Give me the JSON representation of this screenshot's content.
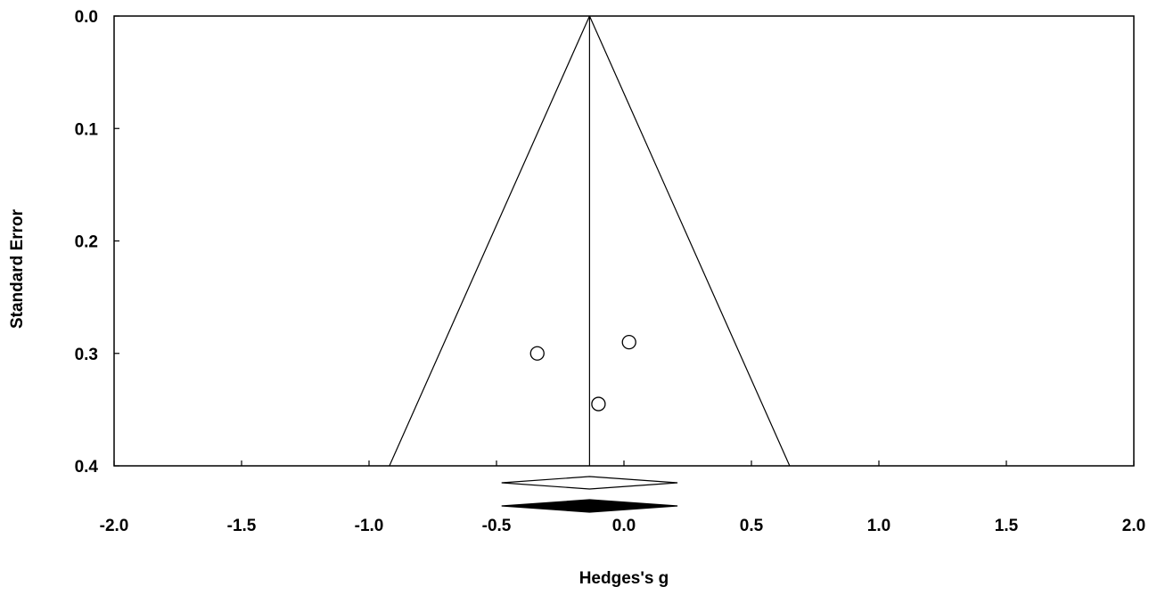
{
  "chart_data": {
    "type": "scatter",
    "title": "",
    "xlabel": "Hedges's g",
    "ylabel": "Standard Error",
    "xlim": [
      -2.0,
      2.0
    ],
    "ylim": [
      0.0,
      0.4
    ],
    "y_inverted": true,
    "grid": false,
    "legend": "none",
    "x_ticks": [
      -2.0,
      -1.5,
      -1.0,
      -0.5,
      0.0,
      0.5,
      1.0,
      1.5,
      2.0
    ],
    "x_tick_labels": [
      "-2.0",
      "-1.5",
      "-1.0",
      "-0.5",
      "0.0",
      "0.5",
      "1.0",
      "1.5",
      "2.0"
    ],
    "y_ticks": [
      0.0,
      0.1,
      0.2,
      0.3,
      0.4
    ],
    "y_tick_labels": [
      "0.0",
      "0.1",
      "0.2",
      "0.3",
      "0.4"
    ],
    "points": [
      {
        "x": -0.34,
        "y": 0.3
      },
      {
        "x": 0.02,
        "y": 0.29
      },
      {
        "x": -0.1,
        "y": 0.345
      }
    ],
    "pooled_effect": -0.135,
    "funnel": {
      "apex": {
        "x": -0.135,
        "y": 0.0
      },
      "base_left": {
        "x": -0.92,
        "y": 0.4
      },
      "base_right": {
        "x": 0.65,
        "y": 0.4
      }
    },
    "summary_diamonds": [
      {
        "style": "open",
        "center": -0.135,
        "lower": -0.48,
        "upper": 0.21
      },
      {
        "style": "filled",
        "center": -0.135,
        "lower": -0.48,
        "upper": 0.21
      }
    ],
    "colors": {
      "axis": "#000000",
      "marker_fill": "#ffffff",
      "filled_diamond": "#000000"
    }
  }
}
